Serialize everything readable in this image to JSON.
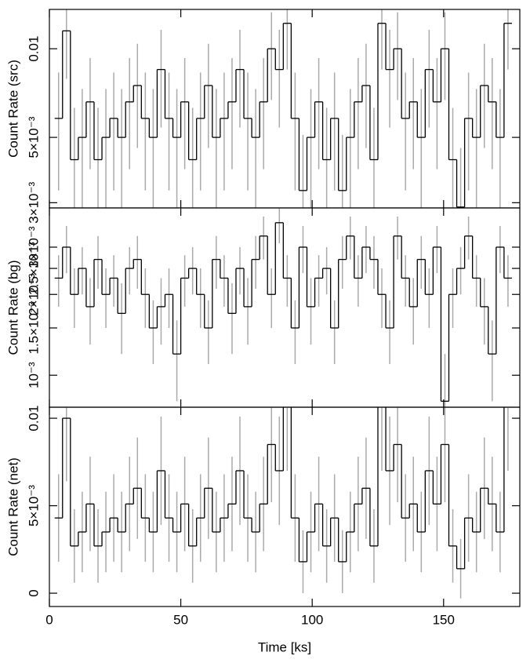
{
  "chart_data": [
    {
      "type": "step",
      "ylabel": "Count Rate (src)",
      "log_y": true,
      "ylim": [
        0.00288,
        0.0136
      ],
      "yticks": [
        {
          "value": 0.003,
          "label": "3×10⁻³"
        },
        {
          "value": 0.005,
          "label": "5×10⁻³"
        },
        0.01
      ],
      "xlim": [
        0,
        179
      ],
      "xticks": [
        0,
        50,
        100,
        150
      ],
      "color": "#000000",
      "error_color": "#aaaaaa",
      "x": [
        3.5,
        6.5,
        9.5,
        12.5,
        15.5,
        18.5,
        21.5,
        24.5,
        27.5,
        30.5,
        33.5,
        36.5,
        39.5,
        42.5,
        45.5,
        48.5,
        51.5,
        54.5,
        57.5,
        60.5,
        63.5,
        66.5,
        69.5,
        72.5,
        75.5,
        78.5,
        81.5,
        84.5,
        87.5,
        90.5,
        93.5,
        96.5,
        99.5,
        102.5,
        105.5,
        108.5,
        111.5,
        114.5,
        117.5,
        120.5,
        123.5,
        126.5,
        129.5,
        132.5,
        135.5,
        138.5,
        141.5,
        144.5,
        147.5,
        150.5,
        153.5,
        156.5,
        159.5,
        162.5,
        165.5,
        168.5,
        171.5,
        174.5
      ],
      "values": [
        0.0058,
        0.0115,
        0.0042,
        0.005,
        0.0066,
        0.0042,
        0.005,
        0.0058,
        0.005,
        0.0066,
        0.0075,
        0.0058,
        0.005,
        0.0085,
        0.0058,
        0.005,
        0.0066,
        0.0042,
        0.0058,
        0.0075,
        0.005,
        0.0058,
        0.0066,
        0.0085,
        0.0058,
        0.005,
        0.0066,
        0.01,
        0.0085,
        0.0122,
        0.0058,
        0.0033,
        0.005,
        0.0066,
        0.0042,
        0.0058,
        0.0033,
        0.005,
        0.0066,
        0.0075,
        0.0042,
        0.0122,
        0.0085,
        0.01,
        0.0058,
        0.0066,
        0.005,
        0.0085,
        0.0066,
        0.01,
        0.0042,
        0.0029,
        0.0058,
        0.005,
        0.0075,
        0.0066,
        0.005,
        0.0122
      ],
      "errors": [
        0.0025,
        0.0036,
        0.0021,
        0.0023,
        0.0027,
        0.0021,
        0.0023,
        0.0025,
        0.0023,
        0.0027,
        0.0029,
        0.0025,
        0.0023,
        0.0031,
        0.0025,
        0.0023,
        0.0027,
        0.0021,
        0.0025,
        0.0029,
        0.0023,
        0.0025,
        0.0027,
        0.0031,
        0.0025,
        0.0023,
        0.0027,
        0.0033,
        0.0031,
        0.0037,
        0.0025,
        0.0018,
        0.0023,
        0.0027,
        0.0021,
        0.0025,
        0.0018,
        0.0023,
        0.0027,
        0.0029,
        0.0021,
        0.0037,
        0.0031,
        0.0033,
        0.0025,
        0.0027,
        0.0023,
        0.0031,
        0.0027,
        0.0033,
        0.0021,
        0.0017,
        0.0025,
        0.0023,
        0.0029,
        0.0027,
        0.0023,
        0.0037
      ]
    },
    {
      "type": "step",
      "ylabel": "Count Rate (bg)",
      "log_y": true,
      "ylim": [
        0.00076,
        0.0042
      ],
      "yticks": [
        {
          "value": 0.001,
          "label": "10⁻³"
        },
        {
          "value": 0.0015,
          "label": "1.5×10⁻³"
        },
        {
          "value": 0.002,
          "label": "2×10⁻³"
        },
        {
          "value": 0.0025,
          "label": "2.5×10⁻³"
        },
        {
          "value": 0.003,
          "label": "3×10⁻³"
        }
      ],
      "xlim": [
        0,
        179
      ],
      "xticks": [
        0,
        50,
        100,
        150
      ],
      "color": "#000000",
      "error_color": "#aaaaaa",
      "x": [
        3.5,
        6.5,
        9.5,
        12.5,
        15.5,
        18.5,
        21.5,
        24.5,
        27.5,
        30.5,
        33.5,
        36.5,
        39.5,
        42.5,
        45.5,
        48.5,
        51.5,
        54.5,
        57.5,
        60.5,
        63.5,
        66.5,
        69.5,
        72.5,
        75.5,
        78.5,
        81.5,
        84.5,
        87.5,
        90.5,
        93.5,
        96.5,
        99.5,
        102.5,
        105.5,
        108.5,
        111.5,
        114.5,
        117.5,
        120.5,
        123.5,
        126.5,
        129.5,
        132.5,
        135.5,
        138.5,
        141.5,
        144.5,
        147.5,
        150.5,
        153.5,
        156.5,
        159.5,
        162.5,
        165.5,
        168.5,
        171.5,
        174.5
      ],
      "values": [
        0.0023,
        0.003,
        0.002,
        0.0025,
        0.0018,
        0.0027,
        0.002,
        0.0023,
        0.0017,
        0.0025,
        0.0027,
        0.002,
        0.0015,
        0.0018,
        0.002,
        0.0012,
        0.0023,
        0.0025,
        0.002,
        0.0015,
        0.0027,
        0.0023,
        0.0017,
        0.0025,
        0.0018,
        0.0027,
        0.0033,
        0.002,
        0.0037,
        0.0023,
        0.0015,
        0.003,
        0.0018,
        0.0023,
        0.0025,
        0.0015,
        0.0027,
        0.0033,
        0.0023,
        0.003,
        0.0027,
        0.002,
        0.0015,
        0.0033,
        0.0023,
        0.0018,
        0.0027,
        0.002,
        0.003,
        0.0008,
        0.002,
        0.0025,
        0.0033,
        0.0023,
        0.0018,
        0.0012,
        0.003,
        0.0023
      ],
      "errors": [
        0.0005,
        0.0006,
        0.0005,
        0.0005,
        0.0005,
        0.0006,
        0.0005,
        0.0005,
        0.0005,
        0.0005,
        0.0006,
        0.0005,
        0.0004,
        0.0005,
        0.0005,
        0.0004,
        0.0005,
        0.0005,
        0.0005,
        0.0004,
        0.0006,
        0.0005,
        0.0005,
        0.0005,
        0.0005,
        0.0006,
        0.0006,
        0.0005,
        0.0006,
        0.0005,
        0.0004,
        0.0006,
        0.0005,
        0.0005,
        0.0005,
        0.0004,
        0.0006,
        0.0006,
        0.0005,
        0.0006,
        0.0006,
        0.0005,
        0.0004,
        0.0006,
        0.0005,
        0.0005,
        0.0006,
        0.0005,
        0.0006,
        0.0004,
        0.0005,
        0.0005,
        0.0006,
        0.0005,
        0.0005,
        0.0004,
        0.0006,
        0.0005
      ]
    },
    {
      "type": "step",
      "ylabel": "Count Rate (net)",
      "xlabel": "Time [ks]",
      "log_y": false,
      "ylim": [
        -0.00076,
        0.01063
      ],
      "yticks": [
        0,
        {
          "value": 0.005,
          "label": "5×10⁻³"
        },
        0.01
      ],
      "xlim": [
        0,
        179
      ],
      "xticks": [
        0,
        50,
        100,
        150
      ],
      "color": "#000000",
      "error_color": "#aaaaaa",
      "x": [
        3.5,
        6.5,
        9.5,
        12.5,
        15.5,
        18.5,
        21.5,
        24.5,
        27.5,
        30.5,
        33.5,
        36.5,
        39.5,
        42.5,
        45.5,
        48.5,
        51.5,
        54.5,
        57.5,
        60.5,
        63.5,
        66.5,
        69.5,
        72.5,
        75.5,
        78.5,
        81.5,
        84.5,
        87.5,
        90.5,
        93.5,
        96.5,
        99.5,
        102.5,
        105.5,
        108.5,
        111.5,
        114.5,
        117.5,
        120.5,
        123.5,
        126.5,
        129.5,
        132.5,
        135.5,
        138.5,
        141.5,
        144.5,
        147.5,
        150.5,
        153.5,
        156.5,
        159.5,
        162.5,
        165.5,
        168.5,
        171.5,
        174.5
      ],
      "values": [
        0.0043,
        0.01,
        0.0027,
        0.0035,
        0.0051,
        0.0027,
        0.0035,
        0.0043,
        0.0035,
        0.0051,
        0.006,
        0.0043,
        0.0035,
        0.007,
        0.0043,
        0.0035,
        0.0051,
        0.0027,
        0.0043,
        0.006,
        0.0035,
        0.0043,
        0.0051,
        0.007,
        0.0043,
        0.0035,
        0.0051,
        0.0085,
        0.007,
        0.0107,
        0.0043,
        0.0018,
        0.0035,
        0.0051,
        0.0027,
        0.0043,
        0.0018,
        0.0035,
        0.0051,
        0.006,
        0.0027,
        0.0107,
        0.007,
        0.0085,
        0.0043,
        0.0051,
        0.0035,
        0.007,
        0.0051,
        0.0085,
        0.0027,
        0.0014,
        0.0043,
        0.0035,
        0.006,
        0.0051,
        0.0035,
        0.0107
      ],
      "errors": [
        0.0025,
        0.0036,
        0.0021,
        0.0023,
        0.0027,
        0.0021,
        0.0023,
        0.0025,
        0.0023,
        0.0027,
        0.0029,
        0.0025,
        0.0023,
        0.0031,
        0.0025,
        0.0023,
        0.0027,
        0.0021,
        0.0025,
        0.0029,
        0.0023,
        0.0025,
        0.0027,
        0.0031,
        0.0025,
        0.0023,
        0.0027,
        0.0033,
        0.0031,
        0.0037,
        0.0025,
        0.0018,
        0.0023,
        0.0027,
        0.0021,
        0.0025,
        0.0018,
        0.0023,
        0.0027,
        0.0029,
        0.0021,
        0.0037,
        0.0031,
        0.0033,
        0.0025,
        0.0027,
        0.0023,
        0.0031,
        0.0027,
        0.0033,
        0.0021,
        0.0017,
        0.0025,
        0.0023,
        0.0029,
        0.0027,
        0.0023,
        0.0037
      ]
    }
  ]
}
